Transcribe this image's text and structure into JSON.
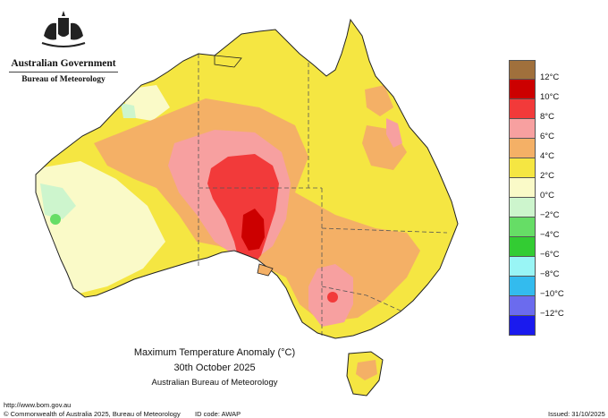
{
  "government": {
    "name": "Australian Government",
    "agency": "Bureau of Meteorology"
  },
  "legend": {
    "items": [
      {
        "label": "12°C",
        "color": "#a0703c"
      },
      {
        "label": "10°C",
        "color": "#cc0000"
      },
      {
        "label": "8°C",
        "color": "#f23a3a"
      },
      {
        "label": "6°C",
        "color": "#f7a0a0"
      },
      {
        "label": "4°C",
        "color": "#f4b066"
      },
      {
        "label": "2°C",
        "color": "#f5e642"
      },
      {
        "label": "0°C",
        "color": "#fafac8"
      },
      {
        "label": "−2°C",
        "color": "#cdf5cd"
      },
      {
        "label": "−4°C",
        "color": "#66dd66"
      },
      {
        "label": "−6°C",
        "color": "#33cc33"
      },
      {
        "label": "−8°C",
        "color": "#99f5f5"
      },
      {
        "label": "−10°C",
        "color": "#33bbee"
      },
      {
        "label": "−12°C",
        "color": "#6b6bee"
      },
      {
        "label": "",
        "color": "#1a1aee"
      }
    ]
  },
  "title": {
    "line1": "Maximum Temperature Anomaly (°C)",
    "line2": "30th October 2025",
    "line3": "Australian Bureau of Meteorology"
  },
  "footer": {
    "url": "http://www.bom.gov.au",
    "copyright": "© Commonwealth of Australia 2025, Bureau of Meteorology",
    "id_code": "ID code: AWAP",
    "issued": "Issued: 31/10/2025"
  }
}
